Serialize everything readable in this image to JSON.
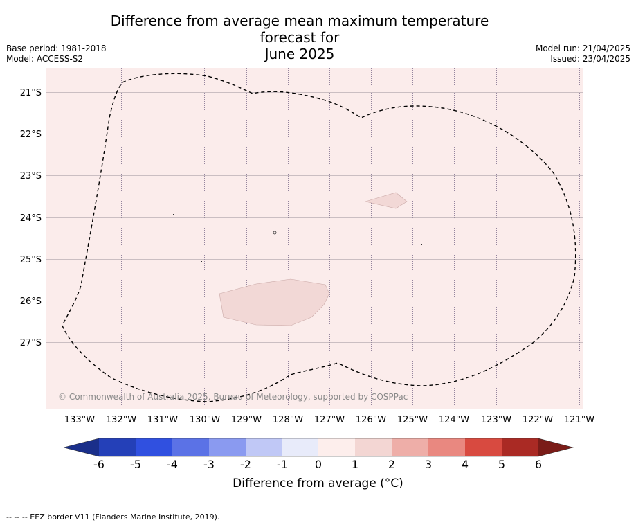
{
  "header": {
    "title_line1": "Difference from average mean maximum temperature forecast for",
    "title_line2": "June 2025",
    "base_period": "Base period: 1981-2018",
    "model": "Model: ACCESS-S2",
    "model_run": "Model run: 21/04/2025",
    "issued": "Issued: 23/04/2025"
  },
  "map": {
    "lon_ticks": [
      "133°W",
      "132°W",
      "131°W",
      "130°W",
      "129°W",
      "128°W",
      "127°W",
      "126°W",
      "125°W",
      "124°W",
      "123°W",
      "122°W",
      "121°W"
    ],
    "lat_ticks": [
      "21°S",
      "22°S",
      "23°S",
      "24°S",
      "25°S",
      "26°S",
      "27°S"
    ],
    "background_color": "#fbeceb",
    "patch_color": "#f2d8d6",
    "credit": "© Commonwealth of Australia 2025, Bureau of Meteorology, supported by COSPPac"
  },
  "colorbar": {
    "ticks": [
      "-6",
      "-5",
      "-4",
      "-3",
      "-2",
      "-1",
      "0",
      "1",
      "2",
      "3",
      "4",
      "5",
      "6"
    ],
    "colors": [
      "#1a2f8a",
      "#2440b8",
      "#3050e0",
      "#5b72e6",
      "#8a9af0",
      "#c0c8f6",
      "#e8ebfa",
      "#fdeeec",
      "#f3d6d3",
      "#eeaea8",
      "#e98880",
      "#d84a40",
      "#aa2a24",
      "#7a1c18"
    ],
    "label": "Difference from average (°C)"
  },
  "footnote": "--  --  -- EEZ border V11 (Flanders Marine Institute, 2019)."
}
